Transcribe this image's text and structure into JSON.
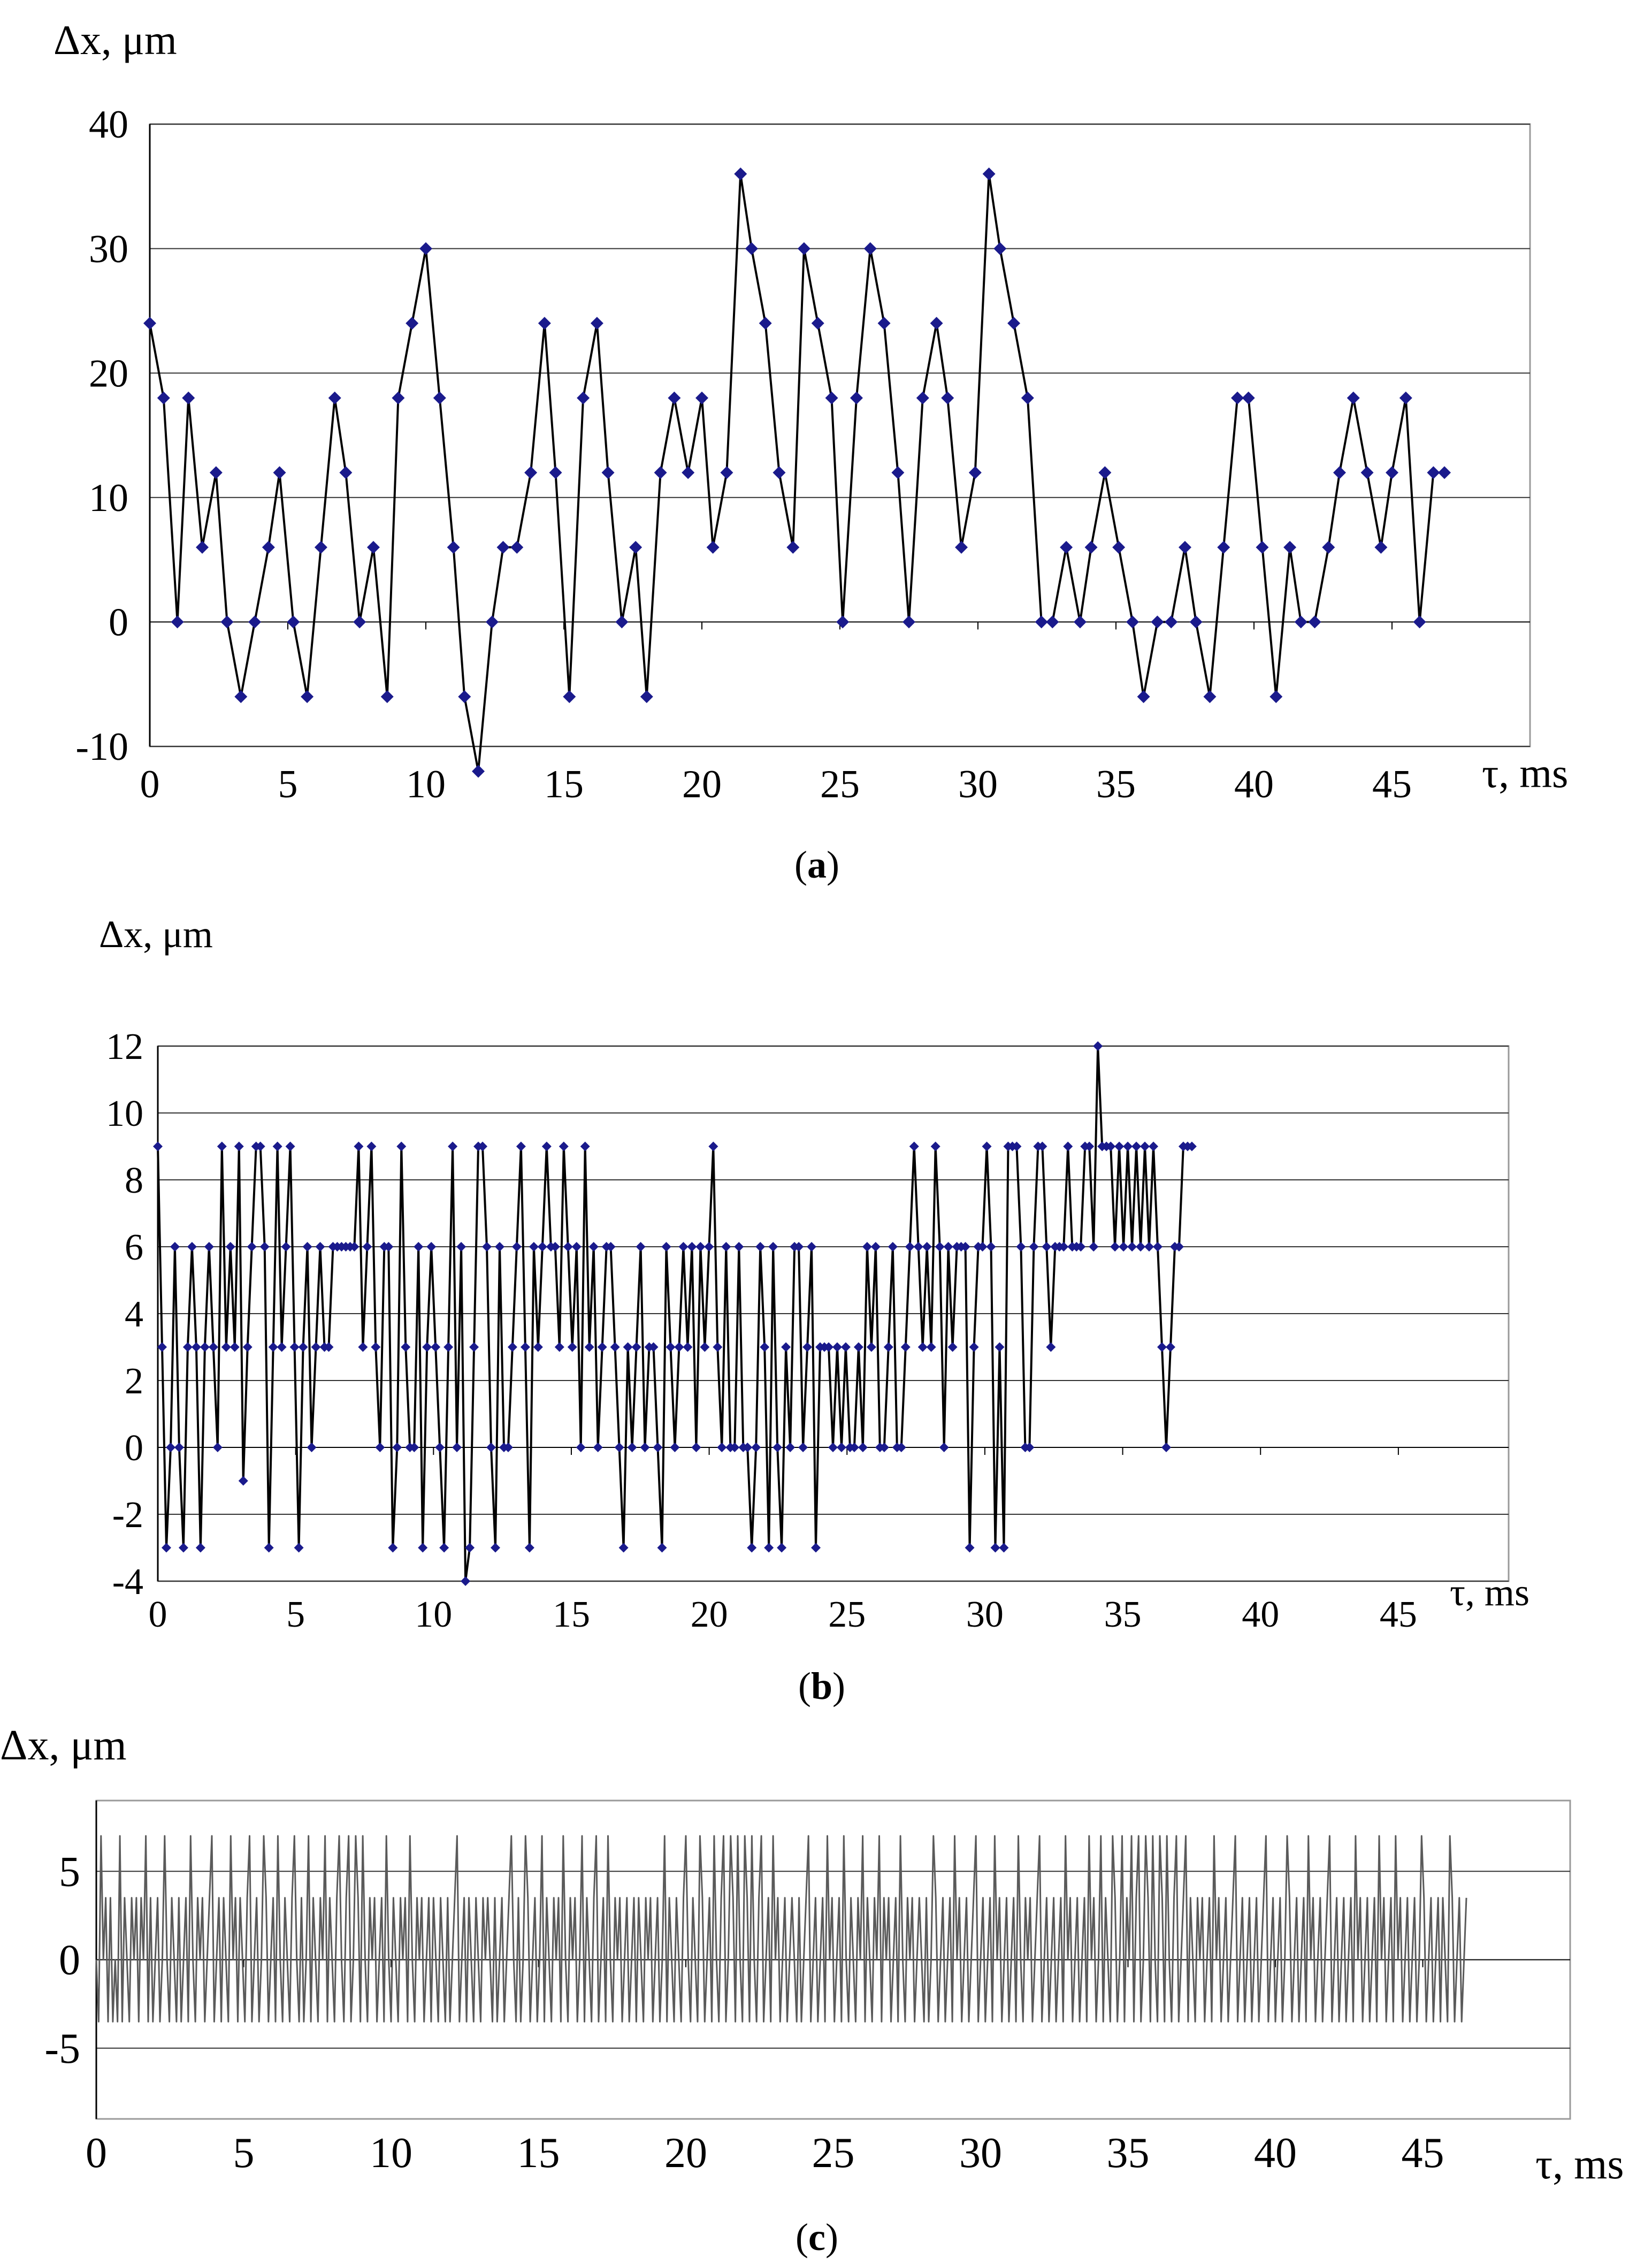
{
  "chart_data": [
    {
      "panel": "a",
      "type": "line",
      "caption_letter": "a",
      "ylabel": "Δx, μm",
      "xlabel": "τ, ms",
      "xlim": [
        0,
        50
      ],
      "ylim": [
        -10,
        40
      ],
      "xticks": [
        0,
        5,
        10,
        15,
        20,
        25,
        30,
        35,
        40,
        45
      ],
      "yticks": [
        -10,
        0,
        10,
        20,
        30,
        40
      ],
      "grid": "horizontal",
      "markers": true,
      "line_color": "#000000",
      "marker_color": "#1a1a8c",
      "series": [
        {
          "x": [
            0,
            0.5,
            1,
            1.4,
            1.9,
            2.4,
            2.8,
            3.3,
            3.8,
            4.3,
            4.7,
            5.2,
            5.7,
            6.2,
            6.7,
            7.1,
            7.6,
            8.1,
            8.6,
            9.0,
            9.5,
            10.0,
            10.5,
            11.0,
            11.4,
            11.9,
            12.4,
            12.8,
            13.3,
            13.8,
            14.3,
            14.7,
            15.2,
            15.7,
            16.2,
            16.6,
            17.1,
            17.6,
            18.0,
            18.5,
            19.0,
            19.5,
            20.0,
            20.4,
            20.9,
            21.4,
            21.8,
            22.3,
            22.8,
            23.3,
            23.7,
            24.2,
            24.7,
            25.1,
            25.6,
            26.1,
            26.6,
            27.1,
            27.5,
            28.0,
            28.5,
            28.9,
            29.4,
            29.9,
            30.4,
            30.8,
            31.3,
            31.8,
            32.3,
            32.7,
            33.2,
            33.7,
            34.1,
            34.6,
            35.1,
            35.6,
            36.0,
            36.5,
            37.0,
            37.5,
            37.9,
            38.4,
            38.9,
            39.4,
            39.8,
            40.3,
            40.8,
            41.3,
            41.7,
            42.2,
            42.7,
            43.1,
            43.6,
            44.1,
            44.6,
            45.0,
            45.5,
            46.0,
            46.5,
            46.9
          ],
          "values": [
            24,
            18,
            0,
            18,
            6,
            12,
            0,
            -6,
            0,
            6,
            12,
            0,
            -6,
            6,
            18,
            12,
            0,
            6,
            -6,
            18,
            24,
            30,
            18,
            6,
            -6,
            -12,
            0,
            6,
            6,
            12,
            24,
            12,
            -6,
            18,
            24,
            12,
            0,
            6,
            -6,
            12,
            18,
            12,
            18,
            6,
            12,
            36,
            30,
            24,
            12,
            6,
            30,
            24,
            18,
            0,
            18,
            30,
            24,
            12,
            0,
            18,
            24,
            18,
            6,
            12,
            36,
            30,
            24,
            18,
            0,
            0,
            6,
            0,
            6,
            12,
            6,
            0,
            -6,
            0,
            0,
            6,
            0,
            -6,
            6,
            18,
            18,
            6,
            -6,
            6,
            0,
            0,
            6,
            12,
            18,
            12,
            6,
            12,
            18,
            0,
            12,
            12
          ]
        }
      ]
    },
    {
      "panel": "b",
      "type": "line",
      "caption_letter": "b",
      "ylabel": "Δx, μm",
      "xlabel": "τ, ms",
      "xlim": [
        0,
        49
      ],
      "ylim": [
        -4,
        12
      ],
      "xticks": [
        0,
        5,
        10,
        15,
        20,
        25,
        30,
        35,
        40,
        45
      ],
      "yticks": [
        -4,
        -2,
        0,
        2,
        4,
        6,
        8,
        10,
        12
      ],
      "grid": "horizontal",
      "markers": true,
      "line_color": "#000000",
      "marker_color": "#1a1a8c",
      "series": [
        {
          "x_start": 0,
          "x_step": 0.155,
          "values": [
            9,
            3,
            -3,
            0,
            6,
            0,
            -3,
            3,
            6,
            3,
            -3,
            3,
            6,
            3,
            0,
            9,
            3,
            6,
            3,
            9,
            -1,
            3,
            6,
            9,
            9,
            6,
            -3,
            3,
            9,
            3,
            6,
            9,
            3,
            -3,
            3,
            6,
            0,
            3,
            6,
            3,
            3,
            6,
            6,
            6,
            6,
            6,
            6,
            9,
            3,
            6,
            9,
            3,
            0,
            6,
            6,
            -3,
            0,
            9,
            3,
            0,
            0,
            6,
            -3,
            3,
            6,
            3,
            0,
            -3,
            3,
            9,
            0,
            6,
            -4,
            -3,
            3,
            9,
            9,
            6,
            0,
            -3,
            6,
            0,
            0,
            3,
            6,
            9,
            3,
            -3,
            6,
            3,
            6,
            9,
            6,
            6,
            3,
            9,
            6,
            3,
            6,
            0,
            9,
            3,
            6,
            0,
            3,
            6,
            6,
            3,
            0,
            -3,
            3,
            0,
            3,
            6,
            0,
            3,
            3,
            0,
            -3,
            6,
            3,
            0,
            3,
            6,
            3,
            6,
            0,
            6,
            3,
            6,
            9,
            3,
            0,
            6,
            0,
            0,
            6,
            0,
            0,
            -3,
            0,
            6,
            3,
            -3,
            6,
            0,
            -3,
            3,
            0,
            6,
            6,
            0,
            3,
            6,
            -3,
            3,
            3,
            3,
            0,
            3,
            0,
            3,
            0,
            0,
            3,
            0,
            6,
            3,
            6,
            0,
            0,
            3,
            6,
            0,
            0,
            3,
            6,
            9,
            6,
            3,
            6,
            3,
            9,
            6,
            0,
            6,
            3,
            6,
            6,
            6,
            -3,
            3,
            6,
            6,
            9,
            6,
            -3,
            3,
            -3,
            9,
            9,
            9,
            6,
            0,
            0,
            6,
            9,
            9,
            6,
            3,
            6,
            6,
            6,
            9,
            6,
            6,
            6,
            9,
            9,
            6,
            12,
            9,
            9,
            9,
            6,
            9,
            6,
            9,
            6,
            9,
            6,
            9,
            6,
            9,
            6,
            3,
            0,
            3,
            6,
            6,
            9,
            9,
            9
          ]
        }
      ]
    },
    {
      "panel": "c",
      "type": "line",
      "caption_letter": "c",
      "ylabel": "Δx, μm",
      "xlabel": "τ, ms",
      "xlim": [
        0,
        50
      ],
      "ylim": [
        -9,
        9
      ],
      "xticks": [
        0,
        5,
        10,
        15,
        20,
        25,
        30,
        35,
        40,
        45
      ],
      "yticks": [
        -5,
        0,
        5
      ],
      "grid": "horizontal",
      "markers": false,
      "line_color": "#5a5a5a",
      "series": [
        {
          "x_start": 0,
          "x_step": 0.08,
          "values": [
            0,
            -3.5,
            7,
            0,
            3.5,
            -3.5,
            3.5,
            -3.5,
            0,
            -3.5,
            7,
            -3.5,
            3.5,
            0,
            -3.5,
            3.5,
            0,
            3.5,
            -3.5,
            3.5,
            0,
            7,
            -3.5,
            3.5,
            -3.5,
            0,
            3.5,
            -3.5,
            0,
            7,
            0,
            -3.5,
            3.5,
            0,
            -3.5,
            3.5,
            -3.5,
            0,
            3.5,
            -3.5,
            7,
            0,
            -3.5,
            3.5,
            0,
            3.5,
            -3.5,
            0,
            3.5,
            7,
            -3.5,
            0,
            3.5,
            -3.5,
            3.5,
            0,
            -3.5,
            7,
            0,
            3.5,
            -3.5,
            3.5,
            0,
            -3.5,
            3.5,
            7,
            -3.5,
            0,
            3.5,
            -3.5,
            0,
            7,
            3.5,
            -3.5,
            0,
            3.5,
            -3.5,
            7,
            0,
            -3.5,
            3.5,
            0,
            -3.5,
            3.5,
            7,
            0,
            -3.5,
            3.5,
            -3.5,
            0,
            7,
            -3.5,
            3.5,
            0,
            -3.5,
            3.5,
            0,
            7,
            -3.5,
            3.5,
            0,
            -3.5,
            3.5,
            7,
            0,
            -3.5,
            3.5,
            7,
            -3.5,
            0,
            7,
            3.5,
            -3.5,
            7,
            0,
            -3.5,
            3.5,
            0,
            3.5,
            -3.5,
            0,
            3.5,
            -3.5,
            7,
            0,
            -3.5,
            3.5,
            0,
            -3.5,
            3.5,
            0,
            3.5,
            -3.5,
            7,
            0,
            -3.5,
            3.5,
            0,
            3.5,
            -3.5,
            0,
            3.5,
            -3.5,
            3.5,
            0,
            -3.5,
            3.5,
            0,
            -3.5,
            3.5,
            -3.5,
            0,
            3.5,
            7,
            -3.5,
            0,
            3.5,
            -3.5,
            3.5,
            0,
            -3.5,
            3.5,
            0,
            -3.5,
            3.5,
            0,
            3.5,
            0,
            -3.5,
            3.5,
            -3.5,
            0,
            3.5,
            -3.5,
            0,
            3.5,
            7,
            0,
            -3.5,
            3.5,
            -3.5,
            0,
            7,
            3.5,
            -3.5,
            0,
            3.5,
            -3.5,
            0,
            7,
            -3.5,
            3.5,
            0,
            -3.5,
            3.5,
            0,
            3.5,
            -3.5,
            7,
            0,
            -3.5,
            3.5,
            0,
            3.5,
            -3.5,
            0,
            7,
            -3.5,
            3.5,
            0,
            -3.5,
            3.5,
            7,
            -3.5,
            0,
            3.5,
            -3.5,
            7,
            0,
            -3.5,
            3.5,
            0,
            3.5,
            -3.5,
            0,
            3.5,
            -3.5,
            0,
            3.5,
            -3.5,
            3.5,
            0,
            -3.5,
            3.5,
            0,
            3.5,
            -3.5,
            0,
            3.5,
            -3.5,
            0,
            7,
            -3.5,
            3.5,
            0,
            -3.5,
            3.5,
            0,
            -3.5,
            3.5,
            7,
            0,
            -3.5,
            3.5,
            0,
            -3.5,
            7,
            3.5,
            -3.5,
            0,
            3.5,
            -3.5,
            7,
            0,
            -3.5,
            3.5,
            7,
            -3.5,
            0,
            7,
            3.5,
            -3.5,
            7,
            0,
            -3.5,
            7,
            3.5,
            -3.5,
            7,
            0,
            -3.5,
            3.5,
            7,
            -3.5,
            0,
            3.5,
            -3.5,
            7,
            0,
            3.5,
            -3.5,
            0,
            3.5,
            -3.5,
            0,
            3.5,
            0,
            -3.5,
            3.5,
            -3.5,
            0,
            3.5,
            7,
            -3.5,
            0,
            3.5,
            -3.5,
            0,
            3.5,
            -3.5,
            7,
            0,
            3.5,
            -3.5,
            0,
            3.5,
            -3.5,
            7,
            0,
            -3.5,
            3.5,
            0,
            -3.5,
            3.5,
            0,
            7,
            -3.5,
            3.5,
            0,
            -3.5,
            3.5,
            0,
            7,
            -3.5,
            3.5,
            0,
            3.5,
            -3.5,
            0,
            3.5,
            -3.5,
            7,
            0,
            -3.5,
            3.5,
            0,
            3.5,
            -3.5,
            0,
            3.5,
            0,
            -3.5,
            3.5,
            -3.5,
            0,
            7,
            3.5,
            -3.5,
            0,
            3.5,
            -3.5,
            0,
            3.5,
            -3.5,
            7,
            0,
            3.5,
            -3.5,
            0,
            3.5,
            -3.5,
            0,
            3.5,
            7,
            -3.5,
            0,
            3.5,
            -3.5,
            0,
            3.5,
            -3.5,
            7,
            0,
            3.5,
            -3.5,
            0,
            3.5,
            -3.5,
            0,
            3.5,
            -3.5,
            7,
            0,
            -3.5,
            3.5,
            0,
            3.5,
            -3.5,
            0,
            3.5,
            7,
            -3.5,
            0,
            3.5,
            -3.5,
            0,
            3.5,
            -3.5,
            0,
            3.5,
            -3.5,
            7,
            0,
            3.5,
            -3.5,
            0,
            3.5,
            -3.5,
            0,
            3.5,
            -3.5,
            7,
            0,
            3.5,
            -3.5,
            0,
            7,
            -3.5,
            3.5,
            0,
            -3.5,
            7,
            3.5,
            -3.5,
            0,
            7,
            -3.5,
            3.5,
            0,
            7,
            -3.5,
            3.5,
            7,
            -3.5,
            0,
            7,
            3.5,
            -3.5,
            7,
            0,
            -3.5,
            7,
            3.5,
            -3.5,
            7,
            0,
            -3.5,
            3.5,
            7,
            -3.5,
            0,
            3.5,
            7,
            -3.5,
            3.5,
            0,
            -3.5,
            3.5,
            0,
            3.5,
            -3.5,
            0,
            3.5,
            -3.5,
            7,
            0,
            3.5,
            -3.5,
            0,
            3.5,
            -3.5,
            0,
            3.5,
            7,
            -3.5,
            0,
            3.5,
            -3.5,
            0,
            3.5,
            -3.5,
            0,
            3.5,
            -3.5,
            0,
            3.5,
            7,
            -3.5,
            0,
            3.5,
            -3.5,
            0,
            3.5,
            -3.5,
            0,
            7,
            3.5,
            -3.5,
            0,
            3.5,
            -3.5,
            0,
            3.5,
            -3.5,
            7,
            0,
            3.5,
            -3.5,
            0,
            3.5,
            -3.5,
            0,
            3.5,
            7,
            -3.5,
            0,
            3.5,
            -3.5,
            0,
            3.5,
            -3.5,
            0,
            3.5,
            -3.5,
            7,
            0,
            3.5,
            -3.5,
            0,
            3.5,
            -3.5,
            0,
            3.5,
            -3.5,
            7,
            0,
            3.5,
            -3.5,
            0,
            3.5,
            -3.5,
            7,
            0,
            3.5,
            -3.5,
            0,
            3.5,
            -3.5,
            0,
            3.5,
            -3.5,
            0,
            7,
            3.5,
            -3.5,
            0,
            3.5,
            -3.5,
            0,
            3.5,
            -3.5,
            3.5,
            0,
            -3.5,
            7,
            3.5,
            -3.5,
            0,
            3.5,
            -3.5,
            0,
            3.5
          ]
        }
      ]
    }
  ]
}
